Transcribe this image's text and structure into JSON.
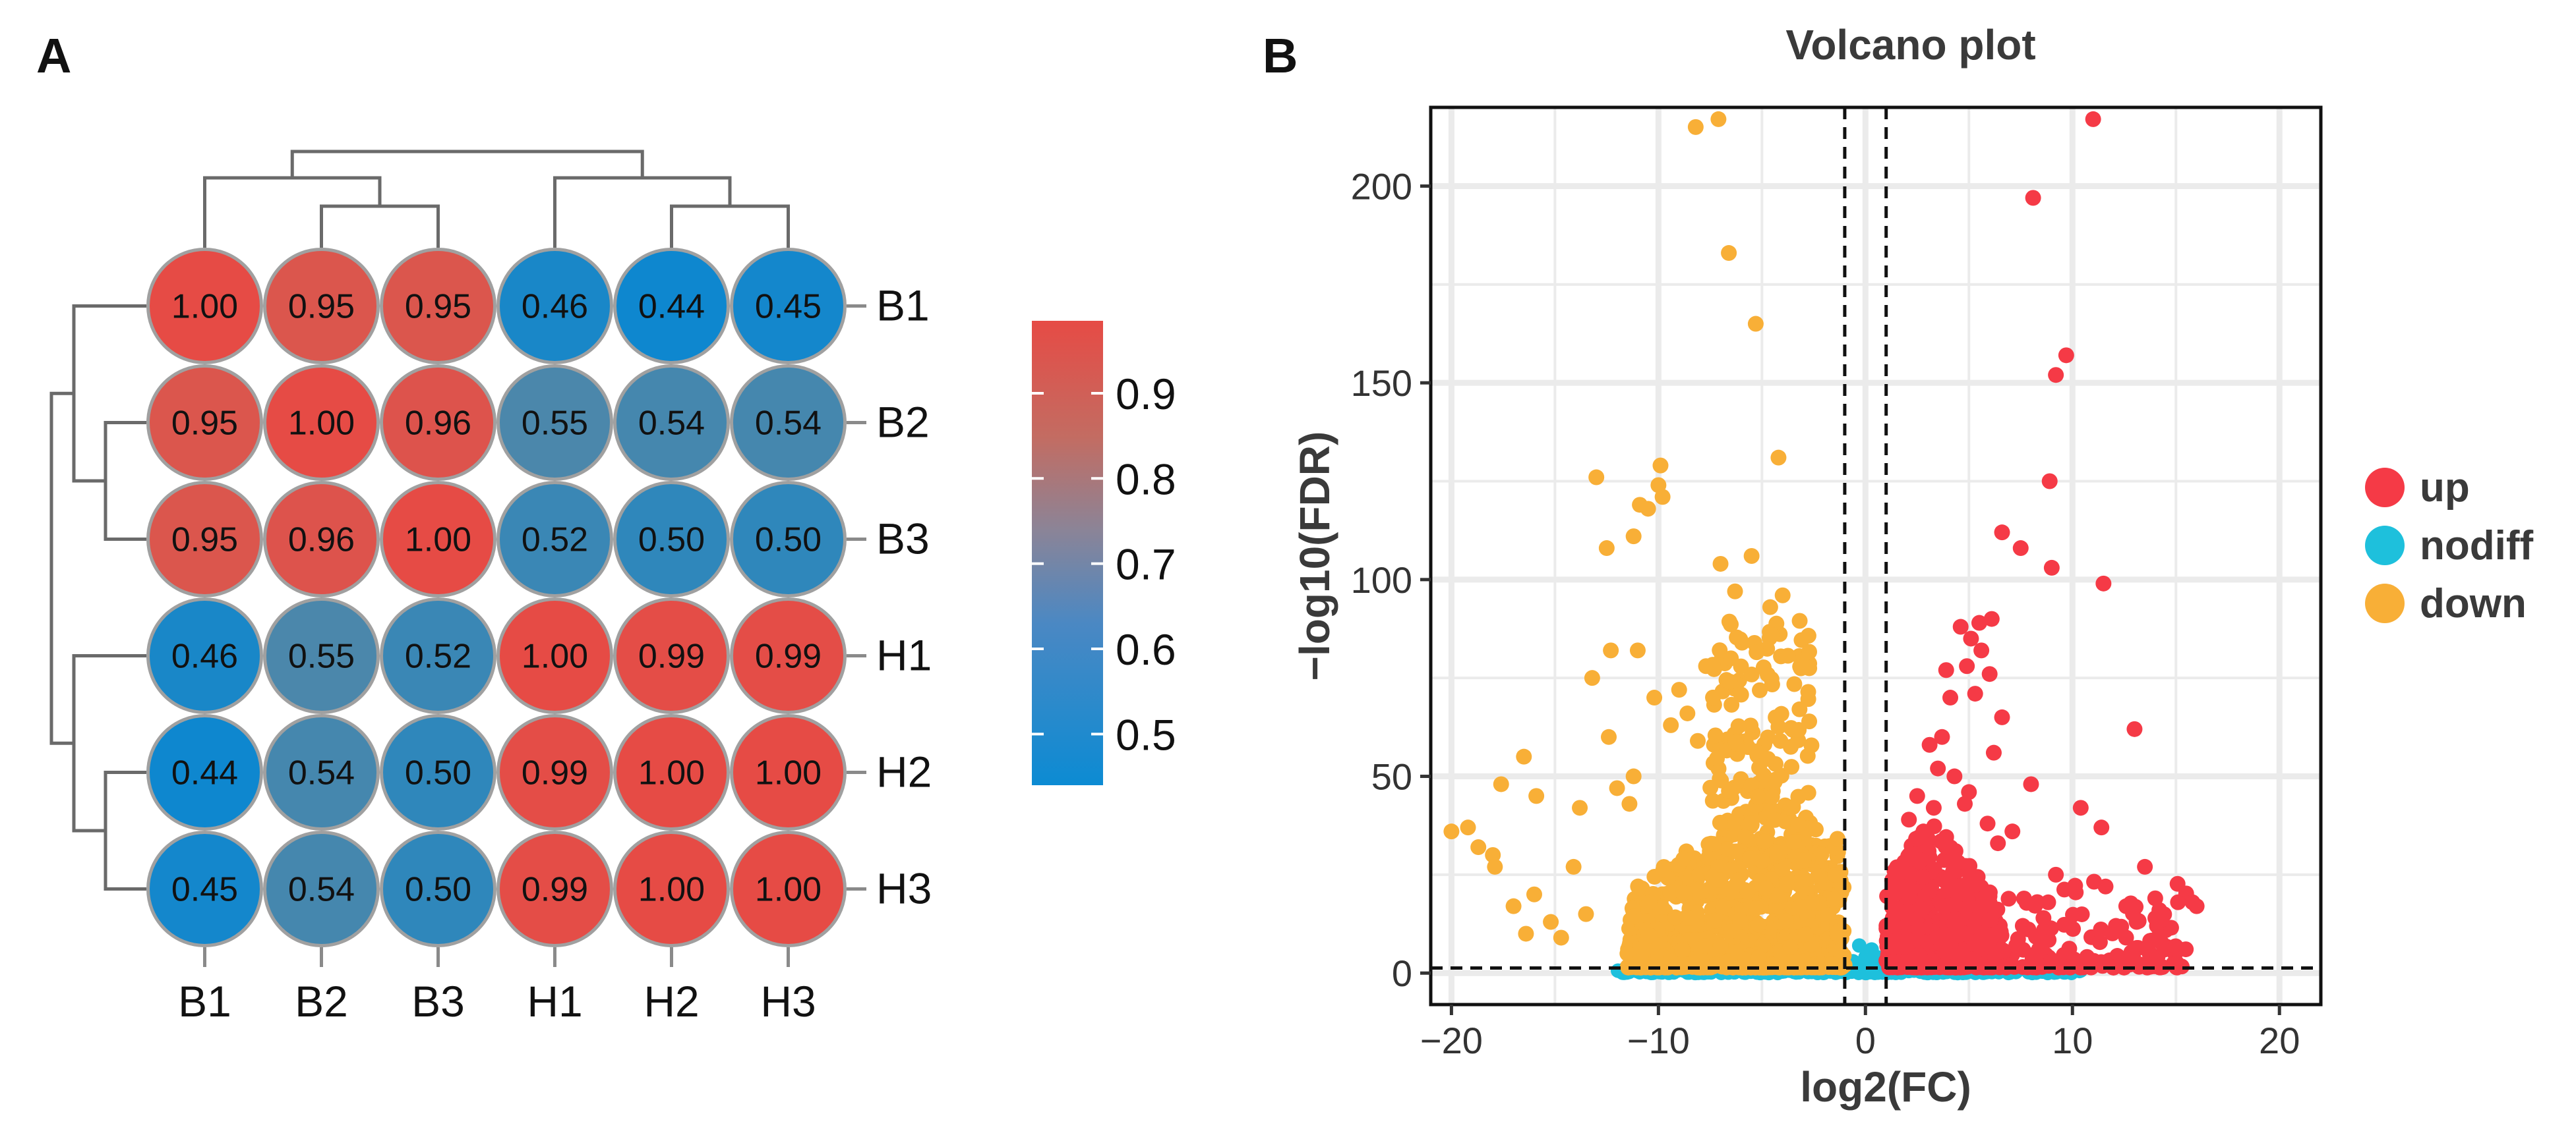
{
  "figure": {
    "panel_a_letter": "A",
    "panel_b_letter": "B"
  },
  "colors": {
    "high": "#E64B45",
    "mid": "#A98673",
    "low": "#0E87CF",
    "up": "#F53A46",
    "nodiff": "#1EC0DC",
    "down": "#F8AF37",
    "circle_border": "#A0A0A0",
    "grid": "#EBEBEB",
    "dendro": "#6A6A6A"
  },
  "chart_data": [
    {
      "type": "heatmap",
      "title": "",
      "row_labels": [
        "B1",
        "B2",
        "B3",
        "H1",
        "H2",
        "H3"
      ],
      "col_labels": [
        "B1",
        "B2",
        "B3",
        "H1",
        "H2",
        "H3"
      ],
      "values": [
        [
          1.0,
          0.95,
          0.95,
          0.46,
          0.44,
          0.45
        ],
        [
          0.95,
          1.0,
          0.96,
          0.55,
          0.54,
          0.54
        ],
        [
          0.95,
          0.96,
          1.0,
          0.52,
          0.5,
          0.5
        ],
        [
          0.46,
          0.55,
          0.52,
          1.0,
          0.99,
          0.99
        ],
        [
          0.44,
          0.54,
          0.5,
          0.99,
          1.0,
          1.0
        ],
        [
          0.45,
          0.54,
          0.5,
          0.99,
          1.0,
          1.0
        ]
      ],
      "color_range": [
        0.44,
        1.0
      ],
      "colorbar_ticks": [
        0.9,
        0.8,
        0.7,
        0.6,
        0.5
      ],
      "colorbar_tick_labels": [
        "0.9",
        "0.8",
        "0.7",
        "0.6",
        "0.5"
      ],
      "dendrogram": "hierarchical clustering on rows and columns"
    },
    {
      "type": "scatter",
      "title": "Volcano plot",
      "xlabel": "log2(FC)",
      "ylabel": "−log10(FDR)",
      "xlim": [
        -21,
        22
      ],
      "ylim": [
        -8,
        220
      ],
      "x_ticks": [
        -20,
        -10,
        0,
        10,
        20
      ],
      "x_tick_labels": [
        "−20",
        "−10",
        "0",
        "10",
        "20"
      ],
      "y_ticks": [
        0,
        50,
        100,
        150,
        200
      ],
      "y_tick_labels": [
        "0",
        "50",
        "100",
        "150",
        "200"
      ],
      "threshold_lines": {
        "log2fc": [
          -1,
          1
        ],
        "neglog10fdr": 1.3
      },
      "legend": {
        "position": "right",
        "entries": [
          "up",
          "nodiff",
          "down"
        ]
      },
      "series": [
        {
          "name": "up",
          "points": [
            [
              11.0,
              217
            ],
            [
              8.1,
              197
            ],
            [
              9.7,
              157
            ],
            [
              9.2,
              152
            ],
            [
              8.9,
              125
            ],
            [
              9.0,
              103
            ],
            [
              11.5,
              99
            ],
            [
              13.0,
              62
            ],
            [
              7.5,
              108
            ],
            [
              6.6,
              112
            ],
            [
              6.1,
              90
            ],
            [
              5.5,
              89
            ],
            [
              4.6,
              88
            ],
            [
              5.1,
              85
            ],
            [
              5.6,
              82
            ],
            [
              4.9,
              78
            ],
            [
              3.9,
              77
            ],
            [
              6.0,
              76
            ],
            [
              5.3,
              71
            ],
            [
              4.1,
              70
            ],
            [
              6.6,
              65
            ],
            [
              3.7,
              60
            ],
            [
              3.1,
              58
            ],
            [
              6.2,
              56
            ],
            [
              3.5,
              52
            ],
            [
              4.3,
              50
            ],
            [
              8.0,
              48
            ],
            [
              5.0,
              46
            ],
            [
              2.5,
              45
            ],
            [
              4.8,
              43
            ],
            [
              3.3,
              42
            ],
            [
              2.1,
              39
            ],
            [
              10.4,
              42
            ],
            [
              5.9,
              38
            ],
            [
              7.1,
              36
            ],
            [
              11.4,
              37
            ],
            [
              2.8,
              36
            ],
            [
              6.4,
              33
            ],
            [
              13.5,
              27
            ],
            [
              14.0,
              19
            ],
            [
              15.8,
              18
            ],
            [
              15.1,
              18
            ],
            [
              14.2,
              16
            ],
            [
              11.6,
              22
            ],
            [
              12.6,
              17
            ],
            [
              9.2,
              25
            ],
            [
              10.1,
              21
            ],
            [
              12.1,
              12
            ],
            [
              13.1,
              13
            ],
            [
              8.6,
              14
            ],
            [
              7.6,
              12
            ],
            [
              16.0,
              17
            ]
          ],
          "cluster": {
            "x_range": [
              1.0,
              6.5
            ],
            "y_max": 38,
            "count": 520
          },
          "tail": {
            "x_range": [
              6.5,
              15.5
            ],
            "y_max": 22,
            "count": 130
          }
        },
        {
          "name": "nodiff",
          "cluster": {
            "x_range": [
              -12,
              10.5
            ],
            "y_max": 1.3,
            "count": 480
          },
          "center_points": [
            [
              -0.3,
              7
            ],
            [
              0.1,
              5
            ],
            [
              0.6,
              4
            ],
            [
              -0.6,
              3
            ],
            [
              0.3,
              6
            ],
            [
              -0.1,
              3
            ],
            [
              0.8,
              2.5
            ],
            [
              -0.8,
              2.5
            ],
            [
              0.0,
              4
            ],
            [
              0.5,
              2
            ]
          ]
        },
        {
          "name": "down",
          "points": [
            [
              -7.1,
              217
            ],
            [
              -8.2,
              215
            ],
            [
              -6.6,
              183
            ],
            [
              -5.3,
              165
            ],
            [
              -4.2,
              131
            ],
            [
              -9.9,
              129
            ],
            [
              -13.0,
              126
            ],
            [
              -10.0,
              124
            ],
            [
              -9.8,
              121
            ],
            [
              -10.9,
              119
            ],
            [
              -10.5,
              118
            ],
            [
              -11.2,
              111
            ],
            [
              -12.5,
              108
            ],
            [
              -5.5,
              106
            ],
            [
              -7.0,
              104
            ],
            [
              -6.3,
              97
            ],
            [
              -4.0,
              96
            ],
            [
              -4.6,
              93
            ],
            [
              -11.0,
              82
            ],
            [
              -12.3,
              82
            ],
            [
              -13.2,
              75
            ],
            [
              -10.2,
              70
            ],
            [
              -16.5,
              55
            ],
            [
              -17.6,
              48
            ],
            [
              -15.9,
              45
            ],
            [
              -13.8,
              42
            ],
            [
              -20.0,
              36
            ],
            [
              -18.7,
              32
            ],
            [
              -18.0,
              30
            ],
            [
              -14.1,
              27
            ],
            [
              -16.0,
              20
            ],
            [
              -17.0,
              17
            ],
            [
              -15.2,
              13
            ],
            [
              -16.4,
              10
            ],
            [
              -13.5,
              15
            ],
            [
              -14.7,
              9
            ],
            [
              -12.4,
              60
            ],
            [
              -11.2,
              50
            ],
            [
              -12.0,
              47
            ],
            [
              -11.4,
              43
            ],
            [
              -9.0,
              72
            ],
            [
              -8.6,
              66
            ],
            [
              -9.4,
              63
            ],
            [
              -8.1,
              59
            ],
            [
              -7.7,
              78
            ],
            [
              -6.5,
              80
            ],
            [
              -19.2,
              37
            ],
            [
              -17.9,
              27
            ]
          ],
          "cluster": {
            "x_range": [
              -11.5,
              -1.0
            ],
            "y_max": 45,
            "count": 800
          },
          "peak": {
            "x_range": [
              -7.5,
              -2.5
            ],
            "y_max": 88,
            "count": 260
          }
        }
      ]
    }
  ]
}
